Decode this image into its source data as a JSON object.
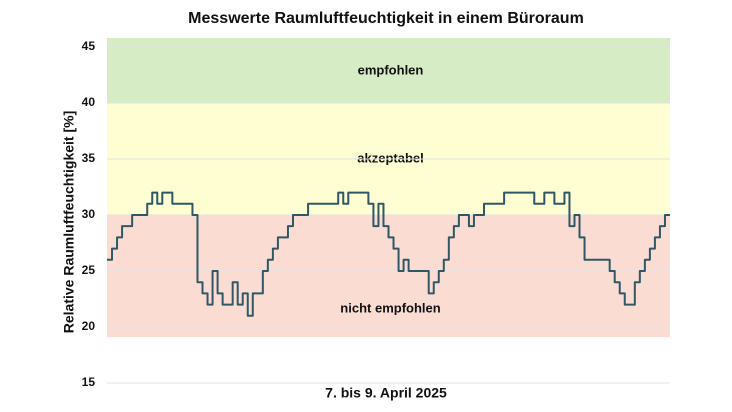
{
  "chart_data": {
    "type": "line",
    "title": "Messwerte Raumluftfeuchtigkeit in einem Büroraum",
    "ylabel": "Relative Raumluftfeuchtigkeit [%]",
    "xlabel": "7. bis 9. April 2025",
    "ylim": [
      15,
      45.8
    ],
    "yticks": [
      15,
      20,
      25,
      30,
      35,
      40,
      45
    ],
    "grid": true,
    "step": true,
    "color": "#2f5866",
    "bands": [
      {
        "label": "empfohlen",
        "from": 40,
        "to": 45.8,
        "color": "#d6ecc4"
      },
      {
        "label": "akzeptabel",
        "from": 30,
        "to": 40,
        "color": "#fefed2"
      },
      {
        "label": "nicht empfohlen",
        "from": 19.1,
        "to": 30,
        "color": "#fadcd3"
      }
    ],
    "values": [
      26,
      27,
      28,
      29,
      29,
      30,
      30,
      30,
      31,
      32,
      31,
      32,
      32,
      31,
      31,
      31,
      31,
      30,
      24,
      23,
      22,
      25,
      23,
      22,
      22,
      24,
      22,
      23,
      21,
      23,
      23,
      25,
      26,
      27,
      28,
      28,
      29,
      30,
      30,
      30,
      31,
      31,
      31,
      31,
      31,
      31,
      32,
      31,
      32,
      32,
      32,
      32,
      31,
      29,
      31,
      29,
      28,
      27,
      25,
      26,
      25,
      25,
      25,
      25,
      23,
      24,
      25,
      26,
      28,
      29,
      30,
      30,
      29,
      30,
      30,
      31,
      31,
      31,
      31,
      32,
      32,
      32,
      32,
      32,
      32,
      31,
      31,
      32,
      32,
      31,
      31,
      32,
      29,
      30,
      28,
      26,
      26,
      26,
      26,
      26,
      25,
      24,
      23,
      22,
      22,
      24,
      25,
      26,
      27,
      28,
      29,
      30,
      30
    ]
  }
}
